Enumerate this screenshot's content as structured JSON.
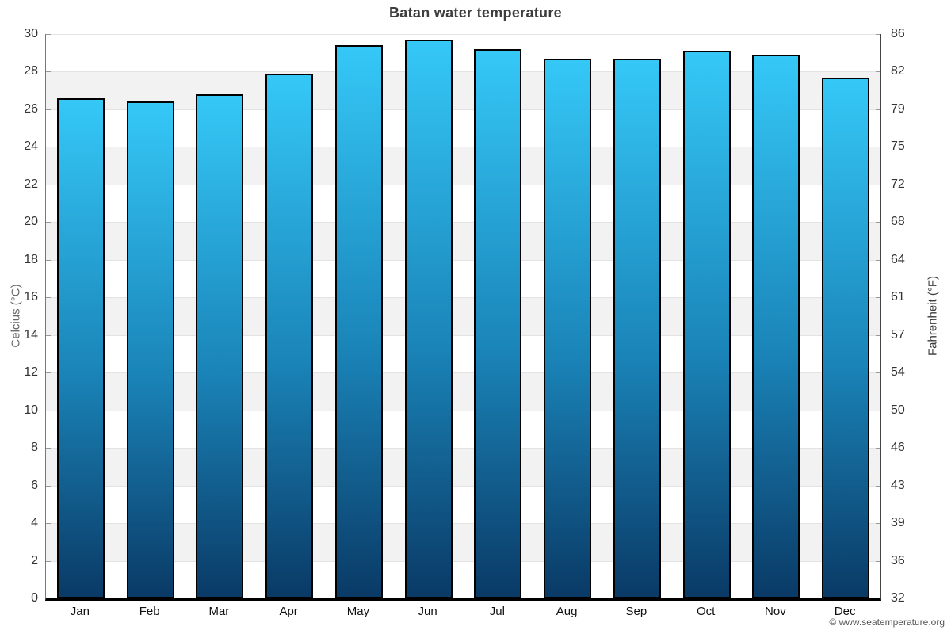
{
  "title": "Batan water temperature",
  "attribution": "© www.seatemperature.org",
  "axes": {
    "left_title": "Celcius (°C)",
    "right_title": "Fahrenheit (°F)"
  },
  "chart_data": {
    "type": "bar",
    "title": "Batan water temperature",
    "categories": [
      "Jan",
      "Feb",
      "Mar",
      "Apr",
      "May",
      "Jun",
      "Jul",
      "Aug",
      "Sep",
      "Oct",
      "Nov",
      "Dec"
    ],
    "values": [
      26.6,
      26.4,
      26.8,
      27.9,
      29.4,
      29.7,
      29.2,
      28.7,
      28.7,
      29.1,
      28.9,
      27.7
    ],
    "unit": "°C",
    "ylabel_left": "Celcius (°C)",
    "ylabel_right": "Fahrenheit (°F)",
    "ylim": [
      0,
      30
    ],
    "celsius_ticks": [
      30,
      28,
      26,
      24,
      22,
      20,
      18,
      16,
      14,
      12,
      10,
      8,
      6,
      4,
      2,
      0
    ],
    "fahrenheit_ticks": [
      86,
      82,
      79,
      75,
      72,
      68,
      64,
      61,
      57,
      54,
      50,
      46,
      43,
      39,
      36,
      32
    ],
    "grid": "alternating horizontal bands every 2°C, light gridlines",
    "legend": "none"
  },
  "colors": {
    "bar_top": "#35c8f7",
    "bar_bottom": "#0a3a66",
    "bar_border": "#000000",
    "band_alt": "#f2f2f2",
    "gridline": "#e3e3e3",
    "title_text": "#3d3d3d"
  }
}
